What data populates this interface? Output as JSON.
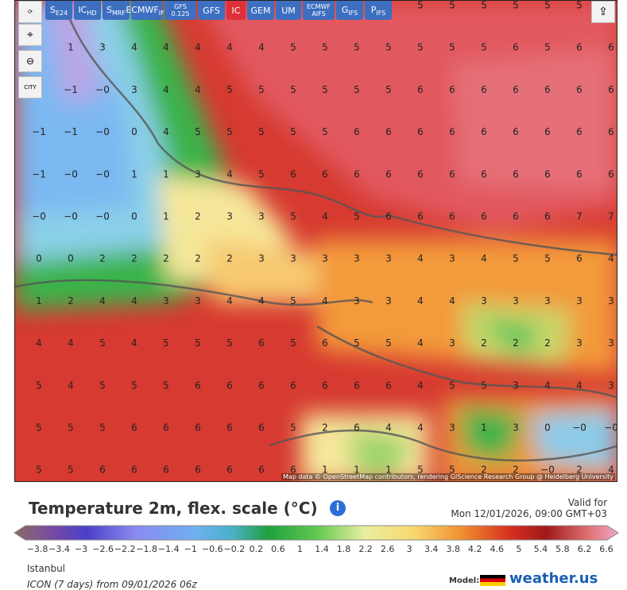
{
  "toolbar": {
    "models": [
      {
        "main": "S",
        "sub": "E24"
      },
      {
        "main": "IC",
        "sub": "HD"
      },
      {
        "main": "S",
        "sub": "MRF"
      },
      {
        "main": "ECMWF",
        "sub": "IFS"
      },
      {
        "main": "GFS",
        "sub": "0.125"
      },
      {
        "main": "GFS"
      },
      {
        "main": "IC"
      },
      {
        "main": "GEM"
      },
      {
        "main": "UM"
      },
      {
        "main": "ECMWF",
        "sub": "AIFS"
      },
      {
        "main": "G",
        "sub": "IFS"
      },
      {
        "main": "P",
        "sub": "IFS"
      }
    ],
    "city_button": "CITY"
  },
  "map": {
    "grid": [
      [
        null,
        null,
        null,
        null,
        null,
        null,
        null,
        null,
        null,
        null,
        null,
        null,
        "5",
        "5",
        "5",
        "5",
        "5",
        "5",
        null
      ],
      [
        null,
        "1",
        "3",
        "4",
        "4",
        "4",
        "4",
        "4",
        "5",
        "5",
        "5",
        "5",
        "5",
        "5",
        "5",
        "6",
        "5",
        "6",
        "6"
      ],
      [
        null,
        "−1",
        "−0",
        "3",
        "4",
        "4",
        "5",
        "5",
        "5",
        "5",
        "5",
        "5",
        "6",
        "6",
        "6",
        "6",
        "6",
        "6",
        "6"
      ],
      [
        "−1",
        "−1",
        "−0",
        "0",
        "4",
        "5",
        "5",
        "5",
        "5",
        "5",
        "6",
        "6",
        "6",
        "6",
        "6",
        "6",
        "6",
        "6",
        "6"
      ],
      [
        "−1",
        "−0",
        "−0",
        "1",
        "1",
        "3",
        "4",
        "5",
        "6",
        "6",
        "6",
        "6",
        "6",
        "6",
        "6",
        "6",
        "6",
        "6",
        "6"
      ],
      [
        "−0",
        "−0",
        "−0",
        "0",
        "1",
        "2",
        "3",
        "3",
        "5",
        "4",
        "5",
        "6",
        "6",
        "6",
        "6",
        "6",
        "6",
        "7",
        "7"
      ],
      [
        "0",
        "0",
        "2",
        "2",
        "2",
        "2",
        "2",
        "3",
        "3",
        "3",
        "3",
        "3",
        "4",
        "3",
        "4",
        "5",
        "5",
        "6",
        "4"
      ],
      [
        "1",
        "2",
        "4",
        "4",
        "3",
        "3",
        "4",
        "4",
        "5",
        "4",
        "3",
        "3",
        "4",
        "4",
        "3",
        "3",
        "3",
        "3",
        "3"
      ],
      [
        "4",
        "4",
        "5",
        "4",
        "5",
        "5",
        "5",
        "6",
        "5",
        "6",
        "5",
        "5",
        "4",
        "3",
        "2",
        "2",
        "2",
        "3",
        "3"
      ],
      [
        "5",
        "4",
        "5",
        "5",
        "5",
        "6",
        "6",
        "6",
        "6",
        "6",
        "6",
        "6",
        "4",
        "5",
        "5",
        "3",
        "4",
        "4",
        "3"
      ],
      [
        "5",
        "5",
        "5",
        "6",
        "6",
        "6",
        "6",
        "6",
        "5",
        "2",
        "6",
        "4",
        "4",
        "3",
        "1",
        "3",
        "0",
        "−0",
        "−0"
      ],
      [
        "5",
        "5",
        "6",
        "6",
        "6",
        "6",
        "6",
        "6",
        "6",
        "1",
        "1",
        "1",
        "5",
        "5",
        "2",
        "2",
        "−0",
        "2",
        "4"
      ]
    ],
    "attribution": "Map data © OpenStreetMap contributors, rendering GIScience Research Group @ Heidelberg University"
  },
  "legend": {
    "title": "Temperature 2m, flex. scale (°C)",
    "valid_label": "Valid for",
    "valid_time": "Mon 12/01/2026, 09:00 GMT+03",
    "scale_labels": [
      "−3.8",
      "−3.4",
      "−3",
      "−2.6",
      "−2.2",
      "−1.8",
      "−1.4",
      "−1",
      "−0.6",
      "−0.2",
      "0.2",
      "0.6",
      "1",
      "1.4",
      "1.8",
      "2.2",
      "2.6",
      "3",
      "3.4",
      "3.8",
      "4.2",
      "4.6",
      "5",
      "5.4",
      "5.8",
      "6.2",
      "6.6"
    ],
    "location": "Istanbul",
    "run": "ICON (7 days) from 09/01/2026 06z",
    "model_label": "Model:",
    "brand": "weather.us"
  }
}
